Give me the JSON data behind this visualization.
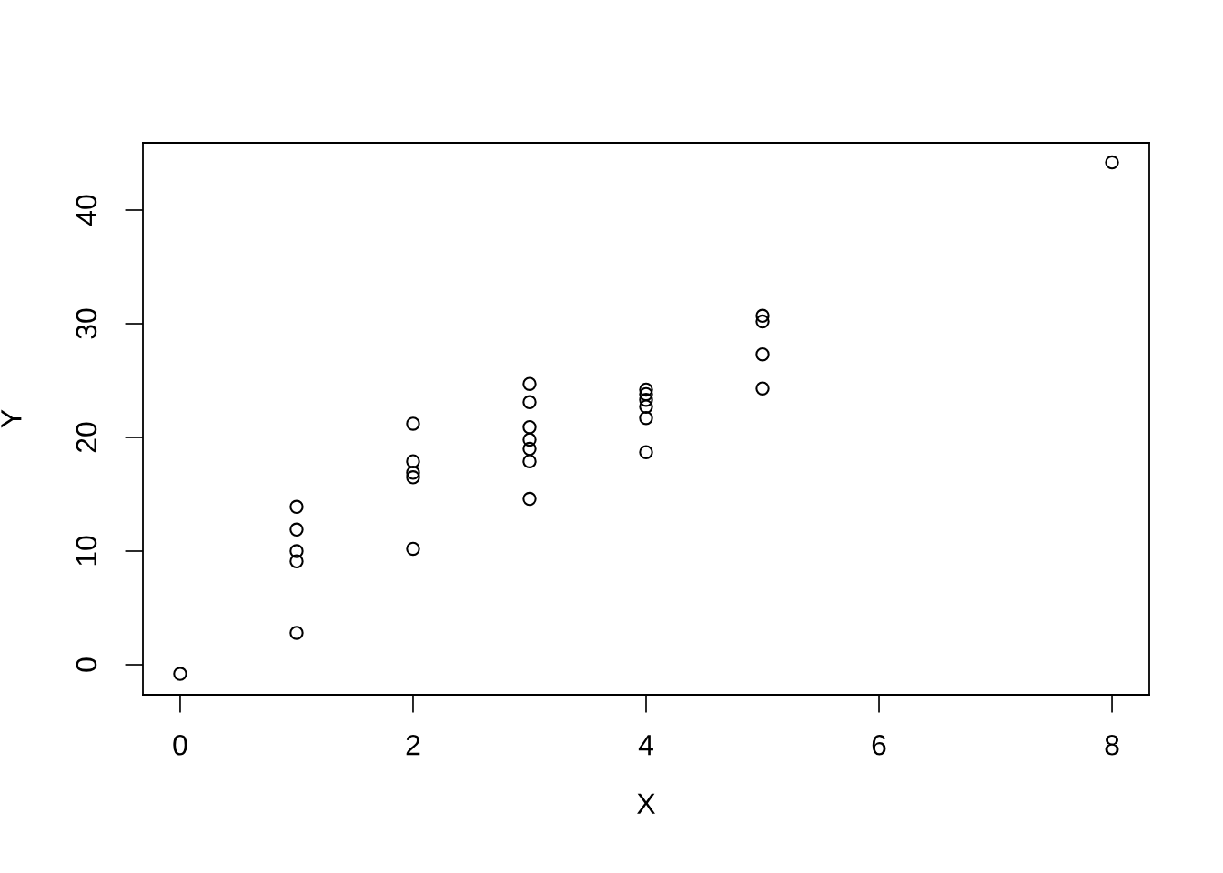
{
  "chart_data": {
    "type": "scatter",
    "xlabel": "X",
    "ylabel": "Y",
    "x": [
      0,
      1,
      1,
      1,
      1,
      1,
      2,
      2,
      2,
      2,
      2,
      3,
      3,
      3,
      3,
      3,
      3,
      3,
      4,
      4,
      4,
      4,
      4,
      4,
      5,
      5,
      5,
      5,
      8
    ],
    "values": [
      -0.8,
      13.9,
      11.9,
      10.0,
      9.1,
      2.8,
      21.2,
      17.9,
      16.9,
      16.5,
      10.2,
      24.7,
      23.1,
      20.9,
      19.8,
      19.0,
      17.9,
      14.6,
      24.2,
      23.8,
      23.3,
      22.7,
      21.7,
      18.7,
      30.7,
      30.2,
      27.3,
      24.3,
      44.2
    ],
    "color": "#000000",
    "marker": "circle",
    "grid": false,
    "xlim": [
      -0.32,
      8.32
    ],
    "ylim": [
      -2.64,
      45.92
    ],
    "xticks": [
      0,
      2,
      4,
      6,
      8
    ],
    "yticks": [
      0,
      10,
      20,
      30,
      40
    ]
  }
}
